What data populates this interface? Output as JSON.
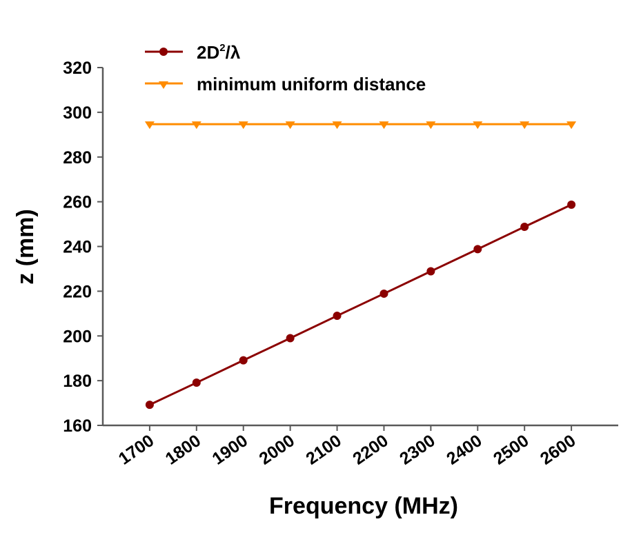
{
  "chart_data": {
    "type": "line",
    "title": "",
    "xlabel": "Frequency (MHz)",
    "ylabel": "z (mm)",
    "x": [
      1700,
      1800,
      1900,
      2000,
      2100,
      2200,
      2300,
      2400,
      2500,
      2600
    ],
    "xlim": [
      1600,
      2700
    ],
    "ylim": [
      160,
      320
    ],
    "yticks": [
      160,
      180,
      200,
      220,
      240,
      260,
      280,
      300,
      320
    ],
    "grid": false,
    "legend_position": "top-left",
    "series": [
      {
        "name": "2D²/λ",
        "name_base": "2D",
        "name_sup": "2",
        "name_tail": "/λ",
        "color": "#8b0000",
        "marker": "circle",
        "values": [
          169.2,
          179.1,
          189.1,
          199.0,
          209.0,
          218.9,
          228.9,
          238.8,
          248.8,
          258.7
        ]
      },
      {
        "name": "minimum uniform distance",
        "color": "#ff8c00",
        "marker": "triangle-down",
        "values": [
          294.7,
          294.7,
          294.7,
          294.7,
          294.7,
          294.7,
          294.7,
          294.7,
          294.7,
          294.7
        ]
      }
    ],
    "axis_color": "#595959"
  }
}
